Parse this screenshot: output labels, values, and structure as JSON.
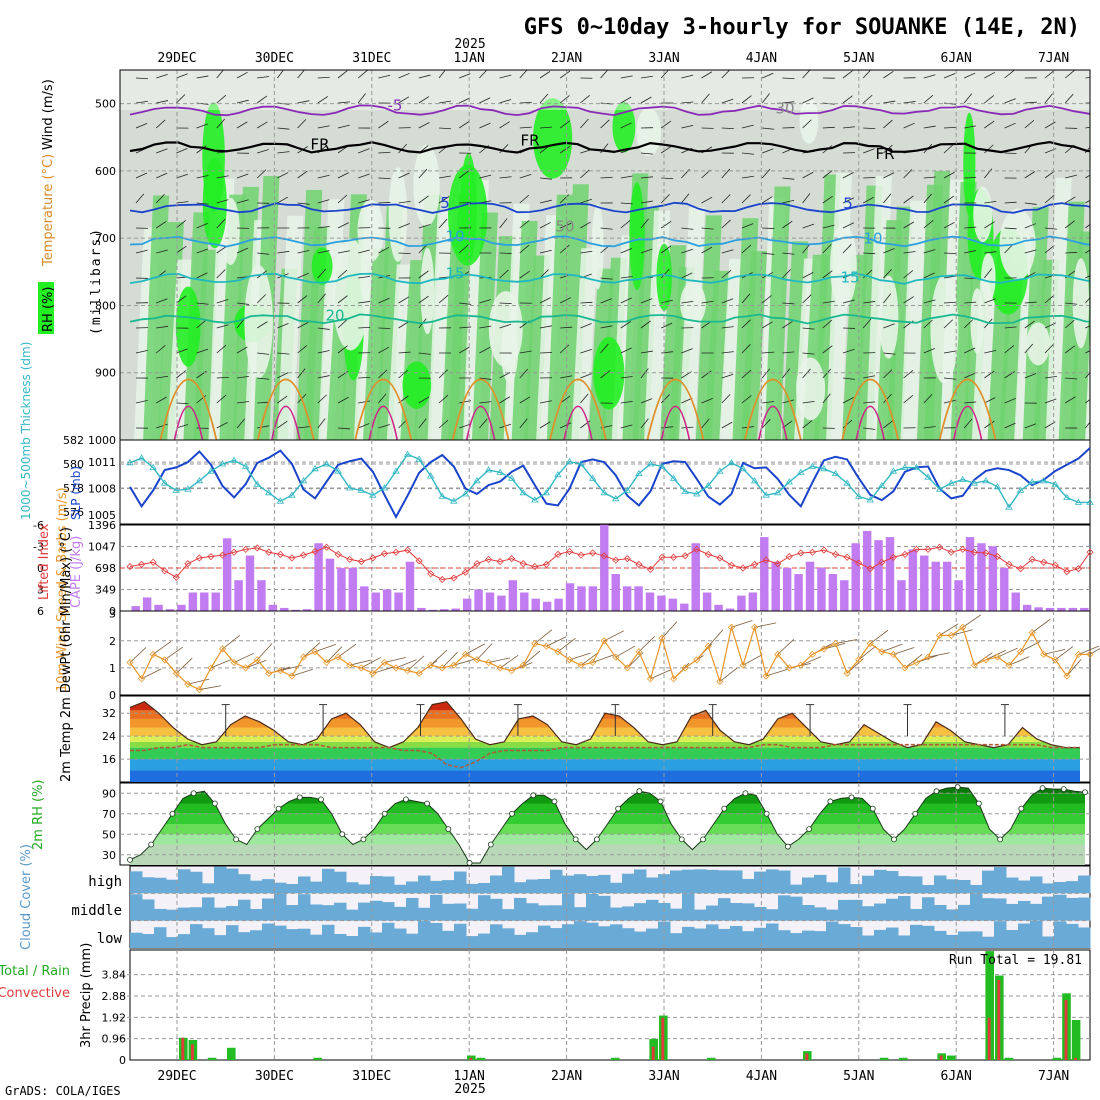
{
  "header": {
    "title": "GFS 0~10day 3-hourly for SOUANKE (14E, 2N)",
    "year": "2025",
    "credit": "GrADS: COLA/IGES"
  },
  "time_axis": {
    "labels": [
      "29DEC",
      "30DEC",
      "31DEC",
      "1JAN",
      "2JAN",
      "3JAN",
      "4JAN",
      "5JAN",
      "6JAN",
      "7JAN"
    ]
  },
  "colors": {
    "rh_light": "#e8f4e8",
    "rh_mid": "#c8d8c8",
    "rh_green": "#6ed46e",
    "rh_bright": "#22ee22",
    "slp": "#1a44cc",
    "thickness": "#33b8c4",
    "cape": "#c07cf0",
    "lifted": "#e03c3c",
    "wind10m": "#e8962a",
    "dewpt": "#b05a3a",
    "cloud": "#6aaad6",
    "precip_total": "#22bb22",
    "precip_conv": "#e03c3c"
  },
  "chart_data": [
    {
      "type": "heatmap",
      "panel": "upper-air",
      "ylabel": "(millibars)",
      "yticks": [
        500,
        600,
        700,
        800,
        900,
        1000
      ],
      "ylim": [
        1000,
        450
      ],
      "legend_labels": [
        "Wind (m/s)",
        "Temperature (°C)",
        "RH (%)"
      ],
      "contour_labels": [
        "-5",
        "FR",
        "FR",
        "FR",
        "5",
        "5",
        "10",
        "10",
        "15",
        "15",
        "20",
        "30",
        "50"
      ],
      "isotherms_hpa": {
        "-5": 510,
        "FR": 565,
        "5": 655,
        "10": 705,
        "15": 760,
        "20": 820
      }
    },
    {
      "type": "line",
      "panel": "slp-thickness",
      "ylabel_left": "1000~500mb Thickness (dm)",
      "ylabel_right": "SLP (mb)",
      "yticks_left": [
        576,
        578,
        580,
        582
      ],
      "yticks_right": [
        1005,
        1008,
        1011
      ],
      "series": [
        {
          "name": "SLP (mb)",
          "values": [
            1008.2,
            1006.0,
            1007.8,
            1010.1,
            1010.4,
            1011.0,
            1012.2,
            1010.7,
            1008.3,
            1007.0,
            1008.5,
            1010.9,
            1011.5,
            1012.3,
            1010.8,
            1007.9,
            1006.9,
            1008.8,
            1010.7,
            1011.1,
            1011.4,
            1009.9,
            1007.3,
            1004.8,
            1007.2,
            1009.8,
            1011.0,
            1011.8,
            1010.5,
            1008.0,
            1007.4,
            1008.4,
            1008.8,
            1009.9,
            1010.6,
            1008.4,
            1006.3,
            1006.1,
            1008.0,
            1011.0,
            1011.3,
            1011.0,
            1009.5,
            1007.2,
            1006.1,
            1007.7,
            1010.8,
            1011.1,
            1011.0,
            1009.1,
            1007.1,
            1006.2,
            1007.4,
            1010.9,
            1010.3,
            1010.4,
            1009.1,
            1007.3,
            1006.0,
            1008.7,
            1011.2,
            1011.6,
            1011.3,
            1009.2,
            1007.3,
            1006.7,
            1007.7,
            1009.9,
            1010.4,
            1010.5,
            1008.0,
            1006.9,
            1007.2,
            1009.0,
            1010.0,
            1010.3,
            1010.1,
            1009.5,
            1008.4,
            1009.0,
            1010.0,
            1010.7,
            1011.4,
            1012.6
          ]
        },
        {
          "name": "Thickness (dm)",
          "values": [
            580.1,
            580.5,
            579.7,
            578.4,
            577.8,
            577.9,
            578.6,
            579.4,
            580.0,
            580.3,
            579.8,
            578.3,
            577.6,
            576.9,
            577.4,
            578.6,
            579.6,
            580.0,
            579.4,
            578.0,
            577.8,
            577.4,
            578.0,
            579.4,
            580.8,
            580.4,
            579.0,
            577.3,
            576.9,
            577.5,
            578.6,
            579.5,
            579.3,
            578.8,
            577.6,
            577.0,
            577.6,
            579.1,
            580.2,
            580.0,
            578.8,
            577.6,
            577.1,
            577.8,
            579.2,
            580.0,
            579.8,
            578.8,
            577.7,
            577.5,
            578.2,
            579.4,
            580.1,
            579.6,
            578.6,
            577.4,
            577.6,
            578.5,
            579.3,
            579.8,
            579.6,
            579.2,
            578.4,
            577.3,
            577.0,
            578.2,
            579.4,
            579.7,
            579.7,
            578.9,
            577.9,
            578.4,
            578.7,
            578.4,
            578.6,
            578.1,
            576.4,
            577.8,
            578.5,
            578.6,
            578.3,
            577.2,
            576.8,
            576.8
          ]
        }
      ]
    },
    {
      "type": "bar",
      "panel": "cape-lifted",
      "ylabel_left": "Lifted Index",
      "ylabel_right": "CAPE (J/kg)",
      "yticks_left": [
        -6,
        -3,
        0,
        3,
        6
      ],
      "yticks_right": [
        0,
        349,
        698,
        1047,
        1396
      ],
      "series": [
        {
          "name": "CAPE (J/kg)",
          "values": [
            80,
            220,
            100,
            30,
            100,
            300,
            300,
            300,
            1180,
            500,
            900,
            500,
            100,
            50,
            20,
            30,
            1100,
            850,
            700,
            700,
            400,
            300,
            350,
            300,
            800,
            50,
            20,
            30,
            40,
            200,
            350,
            300,
            250,
            500,
            300,
            200,
            150,
            200,
            450,
            400,
            400,
            1400,
            600,
            400,
            400,
            300,
            250,
            200,
            120,
            1100,
            300,
            100,
            40,
            250,
            300,
            1200,
            800,
            700,
            600,
            800,
            700,
            600,
            500,
            1100,
            1300,
            1150,
            1200,
            500,
            1000,
            900,
            800,
            800,
            500,
            1200,
            1100,
            1050,
            700,
            300,
            100,
            60,
            50,
            50,
            50,
            50
          ]
        },
        {
          "name": "Lifted Index",
          "values": [
            -0.2,
            -0.5,
            -0.8,
            0.4,
            1.3,
            -0.6,
            -1.4,
            -1.6,
            -1.8,
            -2.2,
            -2.6,
            -2.8,
            -2.2,
            -1.9,
            -1.4,
            -1.8,
            -2.3,
            -2.9,
            -1.9,
            -1.2,
            -0.9,
            -1.4,
            -2.0,
            -2.2,
            -2.5,
            -1.0,
            0.8,
            1.6,
            1.4,
            0.6,
            -0.6,
            -1.2,
            -0.9,
            -1.3,
            -0.6,
            -0.2,
            -0.5,
            -1.9,
            -2.3,
            -1.8,
            -2.1,
            -1.7,
            -1.1,
            -1.3,
            -0.5,
            0.2,
            -1.5,
            -1.5,
            -1.7,
            -2.6,
            -1.9,
            -1.4,
            -0.4,
            0.0,
            -0.5,
            -1.1,
            -0.6,
            -1.6,
            -2.1,
            -2.2,
            -2.5,
            -1.9,
            -1.5,
            -0.7,
            0.1,
            -0.8,
            -1.5,
            -1.9,
            -2.6,
            -2.6,
            -2.9,
            -2.2,
            -2.6,
            -2.2,
            -2.1,
            -1.6,
            -0.5,
            0.1,
            -1.2,
            -0.8,
            -0.4,
            0.5,
            0.1,
            -2.2
          ]
        }
      ]
    },
    {
      "type": "line",
      "panel": "wind10m",
      "ylabel": "10m Wind Speed & Barbs (m/s)",
      "yticks": [
        0,
        1,
        2,
        3
      ],
      "series": [
        {
          "name": "10m Wind Speed (m/s)",
          "values": [
            1.2,
            0.6,
            1.5,
            1.3,
            0.8,
            0.4,
            0.2,
            1.0,
            1.7,
            1.2,
            1.0,
            1.3,
            0.8,
            0.9,
            0.7,
            1.4,
            1.6,
            1.2,
            1.4,
            1.1,
            1.0,
            0.8,
            1.2,
            1.0,
            0.9,
            0.8,
            1.1,
            1.0,
            1.1,
            1.5,
            1.3,
            1.2,
            1.0,
            0.9,
            1.1,
            1.9,
            1.8,
            1.6,
            1.3,
            1.1,
            1.2,
            2.0,
            1.4,
            1.0,
            1.6,
            0.6,
            2.1,
            0.6,
            1.0,
            1.3,
            1.8,
            0.5,
            2.5,
            1.1,
            2.5,
            0.7,
            1.5,
            1.0,
            1.1,
            1.5,
            1.7,
            1.9,
            0.8,
            1.3,
            1.9,
            1.6,
            1.5,
            1.0,
            1.2,
            1.4,
            2.2,
            2.2,
            2.5,
            1.1,
            1.3,
            1.4,
            1.1,
            1.6,
            2.3,
            1.5,
            1.3,
            0.7,
            1.5,
            1.5
          ]
        }
      ]
    },
    {
      "type": "area",
      "panel": "temp2m",
      "ylabel": "2m Temp 2m DewPt (6hr Min/Max) (°C)",
      "yticks": [
        16,
        24,
        32
      ],
      "series": [
        {
          "name": "2m Temp",
          "values": [
            34,
            36,
            32,
            27,
            23,
            21,
            22,
            28,
            31,
            29,
            26,
            22,
            21,
            23,
            30,
            32,
            28,
            22,
            20,
            22,
            27,
            35,
            36,
            30,
            23,
            21,
            22,
            30,
            31,
            28,
            22,
            21,
            23,
            32,
            31,
            27,
            22,
            21,
            22,
            31,
            33,
            26,
            22,
            21,
            23,
            30,
            32,
            27,
            22,
            21,
            22,
            28,
            25,
            22,
            20,
            21,
            29,
            26,
            22,
            21,
            20,
            21,
            27,
            23,
            21,
            20,
            20
          ]
        },
        {
          "name": "2m DewPt",
          "values": [
            19,
            19,
            20,
            20,
            21,
            20,
            20,
            20,
            20,
            20,
            21,
            21,
            21,
            21,
            20,
            20,
            20,
            20,
            20,
            19,
            19,
            18,
            14,
            13,
            15,
            18,
            19,
            19,
            19,
            19,
            20,
            20,
            20,
            20,
            20,
            20,
            20,
            20,
            20,
            20,
            20,
            20,
            20,
            20,
            21,
            21,
            20,
            20,
            20,
            21,
            21,
            21,
            21,
            21,
            21,
            21,
            21,
            21,
            21,
            21,
            21,
            21,
            21,
            21,
            20,
            20,
            20
          ]
        }
      ]
    },
    {
      "type": "area",
      "panel": "rh2m",
      "ylabel": "2m RH (%)",
      "yticks": [
        30,
        50,
        70,
        90
      ],
      "series": [
        {
          "name": "2m RH (%)",
          "values": [
            25,
            30,
            40,
            55,
            70,
            85,
            90,
            92,
            80,
            60,
            45,
            40,
            55,
            65,
            75,
            82,
            86,
            86,
            84,
            70,
            50,
            40,
            45,
            55,
            70,
            80,
            84,
            82,
            80,
            70,
            55,
            40,
            22,
            22,
            40,
            55,
            70,
            80,
            88,
            88,
            82,
            60,
            45,
            35,
            45,
            60,
            75,
            85,
            92,
            90,
            82,
            60,
            45,
            35,
            45,
            60,
            75,
            85,
            90,
            88,
            70,
            50,
            38,
            45,
            55,
            70,
            82,
            85,
            86,
            85,
            75,
            55,
            45,
            55,
            70,
            85,
            92,
            95,
            96,
            95,
            80,
            55,
            45,
            55,
            75,
            88,
            95,
            94,
            94,
            92,
            91
          ]
        }
      ]
    },
    {
      "type": "table",
      "panel": "cloud-cover",
      "ylabel": "Cloud Cover (%)",
      "rows": [
        "high",
        "middle",
        "low"
      ]
    },
    {
      "type": "bar",
      "panel": "precip",
      "ylabel": "3hr Precip (mm)",
      "legend": [
        "Total / Rain",
        "Convective"
      ],
      "yticks": [
        0,
        0.96,
        1.92,
        2.88,
        3.84
      ],
      "annotation": "Run Total = 19.81",
      "series": [
        {
          "name": "Total / Rain",
          "values": [
            [
              5,
              1.0
            ],
            [
              6,
              0.9
            ],
            [
              8,
              0.1
            ],
            [
              10,
              0.55
            ],
            [
              19,
              0.1
            ],
            [
              35,
              0.2
            ],
            [
              36,
              0.1
            ],
            [
              50,
              0.1
            ],
            [
              54,
              0.95
            ],
            [
              55,
              2.0
            ],
            [
              60,
              0.1
            ],
            [
              70,
              0.4
            ],
            [
              78,
              0.1
            ],
            [
              80,
              0.1
            ],
            [
              84,
              0.3
            ],
            [
              85,
              0.2
            ],
            [
              89,
              4.9
            ],
            [
              90,
              3.8
            ],
            [
              91,
              0.1
            ],
            [
              96,
              0.1
            ],
            [
              97,
              3.0
            ],
            [
              98,
              1.8
            ]
          ]
        },
        {
          "name": "Convective",
          "values": [
            [
              5,
              1.0
            ],
            [
              6,
              0.7
            ],
            [
              10,
              0.0
            ],
            [
              35,
              0.1
            ],
            [
              54,
              0.6
            ],
            [
              55,
              1.9
            ],
            [
              70,
              0.3
            ],
            [
              84,
              0.2
            ],
            [
              89,
              1.9
            ],
            [
              90,
              3.6
            ],
            [
              97,
              2.7
            ],
            [
              98,
              0.1
            ]
          ]
        }
      ]
    }
  ]
}
